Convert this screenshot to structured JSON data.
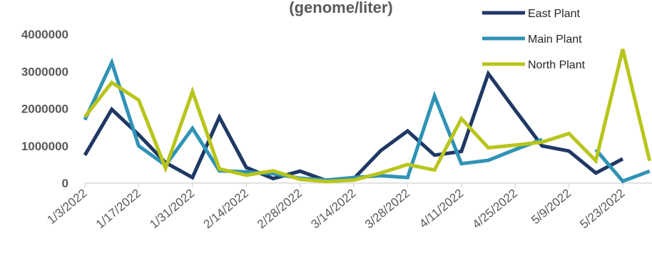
{
  "chart_data": {
    "type": "line",
    "title": "(genome/liter)",
    "xlabel": "",
    "ylabel": "",
    "ylim": [
      0,
      4000000
    ],
    "yticks": [
      "0",
      "1000000",
      "2000000",
      "3000000",
      "4000000"
    ],
    "xticks": [
      "1/3/2022",
      "1/17/2022",
      "1/31/2022",
      "2/14/2022",
      "2/28/2022",
      "3/14/2022",
      "3/28/2022",
      "4/11/2022",
      "4/25/2022",
      "5/9/2022",
      "5/23/2022"
    ],
    "x": [
      "1/3/2022",
      "1/10/2022",
      "1/17/2022",
      "1/24/2022",
      "1/31/2022",
      "2/7/2022",
      "2/14/2022",
      "2/21/2022",
      "2/28/2022",
      "3/7/2022",
      "3/14/2022",
      "3/21/2022",
      "3/28/2022",
      "4/4/2022",
      "4/11/2022",
      "4/18/2022",
      "4/25/2022",
      "5/2/2022",
      "5/9/2022",
      "5/16/2022",
      "5/23/2022",
      "5/30/2022"
    ],
    "grid": false,
    "legend_position": "top-right",
    "series": [
      {
        "name": "East Plant",
        "color": "#1f3864",
        "values": [
          750000,
          1980000,
          1300000,
          550000,
          150000,
          1770000,
          420000,
          120000,
          320000,
          60000,
          120000,
          870000,
          1400000,
          750000,
          850000,
          2940000,
          1960000,
          1000000,
          860000,
          270000,
          650000,
          null
        ]
      },
      {
        "name": "Main Plant",
        "color": "#3093b5",
        "values": [
          1700000,
          3240000,
          1000000,
          480000,
          1470000,
          330000,
          300000,
          250000,
          130000,
          80000,
          150000,
          200000,
          150000,
          2340000,
          520000,
          610000,
          900000,
          1170000,
          null,
          900000,
          50000,
          320000
        ]
      },
      {
        "name": "North Plant",
        "color": "#b8c51b",
        "values": [
          1780000,
          2700000,
          2230000,
          400000,
          2460000,
          380000,
          210000,
          330000,
          100000,
          40000,
          80000,
          270000,
          500000,
          350000,
          1730000,
          950000,
          1020000,
          1100000,
          1330000,
          600000,
          3600000,
          600000
        ]
      }
    ]
  }
}
